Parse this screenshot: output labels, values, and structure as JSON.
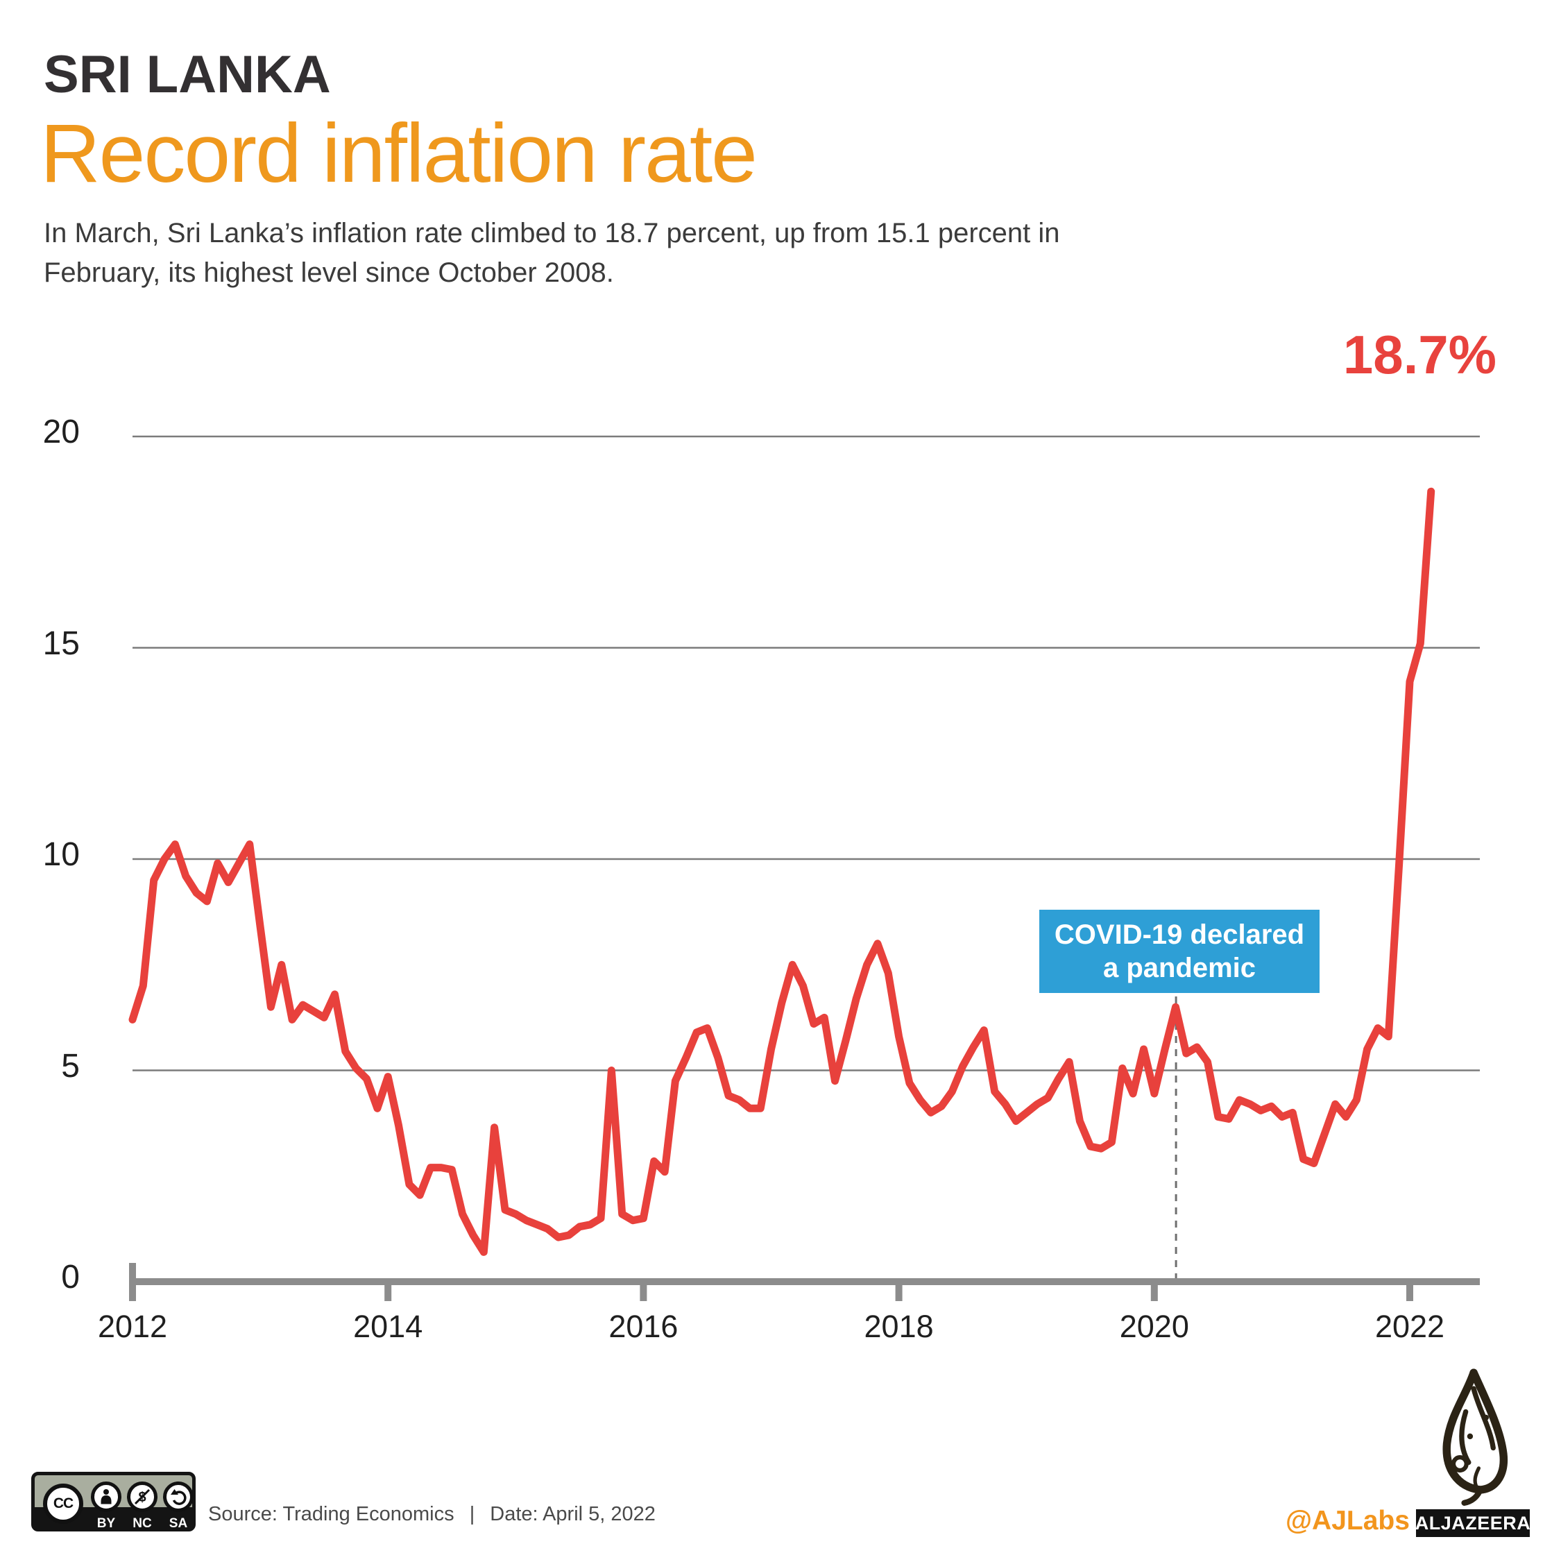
{
  "header": {
    "kicker": "SRI LANKA",
    "title": "Record inflation rate",
    "description_line1": "In March, Sri Lanka’s inflation rate climbed to 18.7 percent, up from 15.1 percent in",
    "description_line2": "February, its highest level since October 2008."
  },
  "chart_data": {
    "type": "line",
    "title": "Record inflation rate",
    "series_name": "Sri Lanka inflation rate (percent, monthly)",
    "x_start": "2012-01",
    "x_end": "2022-03",
    "x_tick_years": [
      2012,
      2014,
      2016,
      2018,
      2020,
      2022
    ],
    "y_tick_values": [
      20,
      15,
      10,
      5,
      0
    ],
    "y_gridlines": [
      5,
      10,
      15,
      20
    ],
    "ylim": [
      0,
      20
    ],
    "grid": "horizontal-only",
    "legend": "none",
    "line_color": "#e8413c",
    "axis_color": "#8c8c8c",
    "gridline_color": "#7b7b7b",
    "peak_label": "18.7%",
    "peak_value": 18.7,
    "previous_value": 15.1,
    "annotation": {
      "line1": "COVID-19 declared",
      "line2": "a pandemic",
      "x_year": 2020.17,
      "box_color": "#2e9fd6",
      "dashed_line_color": "#6f6f6f"
    },
    "values_monthly": [
      6.2,
      7.0,
      9.5,
      10.0,
      10.35,
      9.6,
      9.2,
      9.0,
      9.9,
      9.45,
      9.9,
      10.35,
      8.4,
      6.5,
      7.5,
      6.2,
      6.55,
      6.4,
      6.25,
      6.8,
      5.45,
      5.05,
      4.8,
      4.1,
      4.85,
      3.7,
      2.3,
      2.05,
      2.7,
      2.7,
      2.65,
      1.6,
      1.1,
      0.7,
      3.65,
      1.7,
      1.6,
      1.45,
      1.35,
      1.25,
      1.05,
      1.1,
      1.3,
      1.35,
      1.5,
      5.0,
      1.6,
      1.45,
      1.5,
      2.85,
      2.6,
      4.75,
      5.3,
      5.9,
      6.0,
      5.3,
      4.4,
      4.3,
      4.1,
      4.1,
      5.5,
      6.6,
      7.5,
      7.0,
      6.1,
      6.25,
      4.75,
      5.7,
      6.7,
      7.5,
      8.0,
      7.3,
      5.8,
      4.7,
      4.3,
      4.0,
      4.15,
      4.5,
      5.1,
      5.55,
      5.95,
      4.5,
      4.2,
      3.8,
      4.0,
      4.2,
      4.35,
      4.8,
      5.2,
      3.8,
      3.2,
      3.15,
      3.3,
      5.05,
      4.45,
      5.5,
      4.45,
      5.5,
      6.5,
      5.4,
      5.55,
      5.2,
      3.9,
      3.85,
      4.3,
      4.2,
      4.05,
      4.15,
      3.9,
      4.0,
      2.9,
      2.8,
      3.5,
      4.2,
      3.9,
      4.3,
      5.5,
      6.0,
      5.8,
      9.9,
      14.2,
      15.1,
      18.7
    ]
  },
  "footer": {
    "cc": {
      "circle": "CC",
      "labels": [
        "BY",
        "NC",
        "SA"
      ]
    },
    "source_label": "Source: Trading Economics",
    "separator": "|",
    "date_label": "Date: April 5, 2022",
    "social_handle": "@AJLabs",
    "brand_name": "ALJAZEERA"
  },
  "colors": {
    "orange": "#ef981d",
    "red": "#e8413c",
    "blue": "#2e9fd6",
    "sage": "#a9ae9f"
  }
}
